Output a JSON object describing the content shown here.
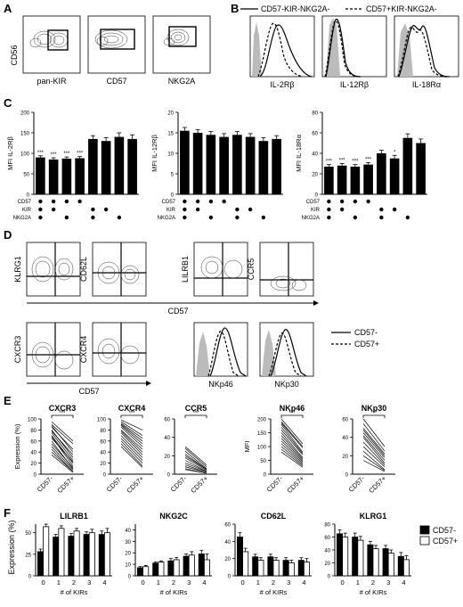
{
  "panels": {
    "A": "A",
    "B": "B",
    "C": "C",
    "D": "D",
    "E": "E",
    "F": "F"
  },
  "panelA": {
    "ylabel": "CD56",
    "xlabels": [
      "pan-KIR",
      "CD57",
      "NKG2A"
    ]
  },
  "panelB": {
    "legend": [
      "CD57-KIR-NKG2A-",
      "CD57+KIR-NKG2A-"
    ],
    "xlabels": [
      "IL-2Rβ",
      "IL-12Rβ",
      "IL-18Rα"
    ]
  },
  "panelD": {
    "top_ylabels": [
      "KLRG1",
      "CD62L",
      "LILRB1",
      "CCR5"
    ],
    "top_xlabel": "CD57",
    "bottom_ylabels": [
      "CXCR3",
      "CXCR4"
    ],
    "bottom_xlabel_left": "CD57",
    "hist_xlabels": [
      "NKp46",
      "NKp30"
    ],
    "legend": [
      "CD57-",
      "CD57+"
    ]
  },
  "panelF": {
    "ylabel": "Expression (%)",
    "xlabel": "# of KIRs",
    "legend": [
      "CD57-",
      "CD57+"
    ],
    "colors": {
      "neg": "#000000",
      "pos": "#ffffff"
    }
  },
  "chart_data": [
    {
      "id": "C",
      "type": "bar",
      "row_labels": [
        "CD57",
        "KIR",
        "NKG2A"
      ],
      "groups": [
        {
          "ylabel": "MFI IL-2Rβ",
          "ylim": [
            0,
            200
          ],
          "yticks": [
            0,
            50,
            100,
            150,
            200
          ],
          "values": [
            90,
            85,
            87,
            88,
            135,
            130,
            140,
            135
          ],
          "errors": [
            4,
            4,
            4,
            4,
            8,
            8,
            10,
            10
          ],
          "stars": [
            "***",
            "***",
            "***",
            "***",
            "",
            "",
            "",
            ""
          ]
        },
        {
          "ylabel": "MFI IL-12Rβ",
          "ylim": [
            0,
            20
          ],
          "yticks": [
            0,
            5,
            10,
            15,
            20
          ],
          "values": [
            15.5,
            15,
            14.5,
            14,
            14.5,
            14,
            13,
            13.5
          ],
          "errors": [
            0.8,
            0.8,
            0.8,
            0.8,
            0.8,
            0.8,
            0.8,
            0.8
          ],
          "stars": [
            "",
            "",
            "",
            "",
            "",
            "",
            "",
            ""
          ]
        },
        {
          "ylabel": "MFI IL-18Rα",
          "ylim": [
            0,
            80
          ],
          "yticks": [
            0,
            20,
            40,
            60,
            80
          ],
          "values": [
            27,
            28,
            27,
            29,
            40,
            35,
            55,
            50
          ],
          "errors": [
            2,
            2,
            2,
            2,
            3,
            3,
            4,
            4
          ],
          "stars": [
            "***",
            "***",
            "***",
            "***",
            "",
            "*",
            "",
            ""
          ]
        }
      ],
      "dots": [
        [
          1,
          1,
          1,
          1,
          0,
          0,
          0,
          0
        ],
        [
          1,
          1,
          0,
          0,
          1,
          1,
          0,
          0
        ],
        [
          1,
          0,
          1,
          0,
          1,
          0,
          1,
          0
        ]
      ]
    },
    {
      "id": "E",
      "type": "line",
      "categories": [
        "CD57-",
        "CD57+"
      ],
      "significance": "***",
      "groups": [
        {
          "title": "CXCR3",
          "ylabel": "Expression (%)",
          "ylim": [
            0,
            100
          ],
          "yticks": [
            0,
            20,
            40,
            60,
            80,
            100
          ],
          "pairs": [
            [
              95,
              60
            ],
            [
              90,
              55
            ],
            [
              88,
              40
            ],
            [
              85,
              45
            ],
            [
              80,
              30
            ],
            [
              78,
              35
            ],
            [
              75,
              25
            ],
            [
              70,
              20
            ],
            [
              68,
              15
            ],
            [
              65,
              22
            ],
            [
              60,
              10
            ],
            [
              55,
              12
            ],
            [
              50,
              8
            ],
            [
              45,
              5
            ],
            [
              40,
              5
            ],
            [
              35,
              3
            ]
          ]
        },
        {
          "title": "CXCR4",
          "ylim": [
            0,
            100
          ],
          "yticks": [
            0,
            20,
            40,
            60,
            80,
            100
          ],
          "pairs": [
            [
              98,
              80
            ],
            [
              95,
              70
            ],
            [
              92,
              65
            ],
            [
              90,
              60
            ],
            [
              88,
              55
            ],
            [
              85,
              50
            ],
            [
              80,
              45
            ],
            [
              78,
              40
            ],
            [
              75,
              35
            ],
            [
              70,
              30
            ],
            [
              65,
              25
            ],
            [
              60,
              20
            ],
            [
              55,
              15
            ],
            [
              50,
              12
            ]
          ]
        },
        {
          "title": "CCR5",
          "ylim": [
            0,
            60
          ],
          "yticks": [
            0,
            20,
            40,
            60
          ],
          "pairs": [
            [
              30,
              10
            ],
            [
              28,
              8
            ],
            [
              25,
              6
            ],
            [
              22,
              5
            ],
            [
              20,
              5
            ],
            [
              18,
              4
            ],
            [
              15,
              3
            ],
            [
              12,
              3
            ],
            [
              10,
              2
            ],
            [
              8,
              2
            ],
            [
              6,
              1
            ],
            [
              5,
              1
            ]
          ]
        },
        {
          "title": "NKp46",
          "ylabel": "MFI",
          "ylim": [
            0,
            200
          ],
          "yticks": [
            0,
            50,
            100,
            150,
            200
          ],
          "pairs": [
            [
              200,
              110
            ],
            [
              190,
              100
            ],
            [
              185,
              95
            ],
            [
              180,
              80
            ],
            [
              170,
              75
            ],
            [
              160,
              70
            ],
            [
              150,
              60
            ],
            [
              140,
              55
            ],
            [
              130,
              50
            ],
            [
              120,
              45
            ],
            [
              110,
              40
            ],
            [
              100,
              35
            ],
            [
              90,
              30
            ],
            [
              80,
              25
            ]
          ]
        },
        {
          "title": "NKp30",
          "ylim": [
            0,
            60
          ],
          "yticks": [
            0,
            20,
            40,
            60
          ],
          "pairs": [
            [
              60,
              30
            ],
            [
              55,
              25
            ],
            [
              50,
              22
            ],
            [
              48,
              20
            ],
            [
              45,
              18
            ],
            [
              42,
              15
            ],
            [
              40,
              12
            ],
            [
              35,
              10
            ],
            [
              30,
              8
            ],
            [
              25,
              5
            ],
            [
              20,
              4
            ],
            [
              15,
              3
            ]
          ]
        }
      ]
    },
    {
      "id": "F",
      "type": "bar",
      "categories": [
        "0",
        "1",
        "2",
        "3",
        "4"
      ],
      "xlabel": "# of KIRs",
      "series_names": [
        "CD57-",
        "CD57+"
      ],
      "groups": [
        {
          "title": "LILRB1",
          "ylim": [
            0,
            60
          ],
          "yticks": [
            0,
            25,
            50
          ],
          "neg": [
            28,
            45,
            46,
            48,
            48
          ],
          "pos": [
            57,
            55,
            52,
            50,
            50
          ],
          "neg_err": [
            3,
            3,
            3,
            3,
            4
          ],
          "pos_err": [
            3,
            3,
            3,
            4,
            5
          ]
        },
        {
          "title": "NKG2C",
          "ylim": [
            0,
            45
          ],
          "yticks": [
            0,
            10,
            20,
            30,
            40
          ],
          "neg": [
            7,
            11,
            13,
            17,
            19
          ],
          "pos": [
            8,
            12,
            14,
            18,
            14
          ],
          "neg_err": [
            1,
            1,
            2,
            2,
            3
          ],
          "pos_err": [
            1,
            1,
            2,
            3,
            5
          ]
        },
        {
          "title": "CD62L",
          "ylim": [
            0,
            60
          ],
          "yticks": [
            0,
            20,
            40,
            60
          ],
          "neg": [
            45,
            22,
            22,
            18,
            18
          ],
          "pos": [
            28,
            18,
            18,
            15,
            16
          ],
          "neg_err": [
            5,
            3,
            3,
            3,
            3
          ],
          "pos_err": [
            4,
            3,
            3,
            3,
            4
          ]
        },
        {
          "title": "KLRG1",
          "ylim": [
            0,
            80
          ],
          "yticks": [
            0,
            20,
            40,
            60,
            80
          ],
          "neg": [
            65,
            60,
            48,
            42,
            30
          ],
          "pos": [
            60,
            55,
            42,
            35,
            25
          ],
          "neg_err": [
            6,
            6,
            5,
            5,
            6
          ],
          "pos_err": [
            6,
            6,
            5,
            5,
            6
          ]
        }
      ]
    }
  ]
}
